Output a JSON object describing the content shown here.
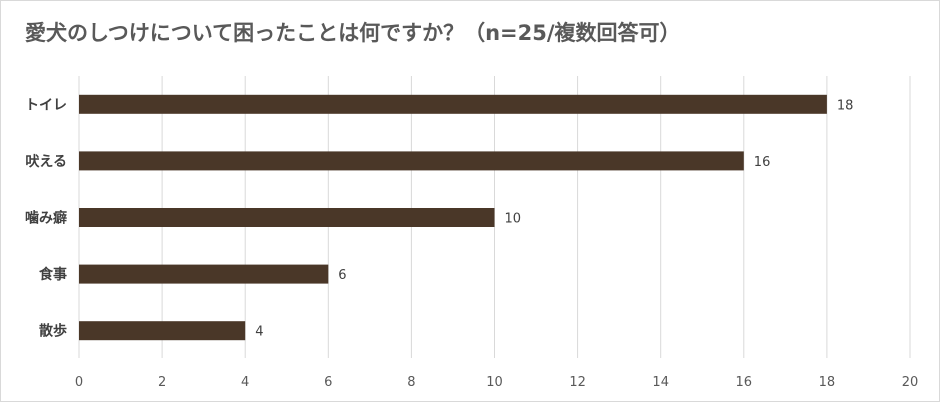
{
  "chart_data": {
    "type": "bar",
    "orientation": "horizontal",
    "title": "愛犬のしつけについて困ったことは何ですか？（n=25/複数回答可）",
    "categories": [
      "トイレ",
      "吠える",
      "噛み癖",
      "食事",
      "散歩"
    ],
    "values": [
      18,
      16,
      10,
      6,
      4
    ],
    "xlim": [
      0,
      20
    ],
    "xticks": [
      "0",
      "2",
      "4",
      "6",
      "8",
      "10",
      "12",
      "14",
      "16",
      "18",
      "20"
    ],
    "grid": true,
    "legend": "none",
    "bar_color": "#4a3728",
    "grid_color": "#d9d9d9"
  }
}
